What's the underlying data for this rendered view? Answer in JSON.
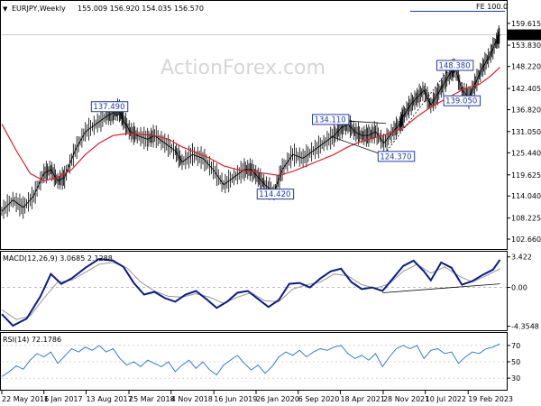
{
  "header": {
    "symbol": "EURJPY,Weekly",
    "ohlc": "155.009 156.920 154.035 156.570",
    "fe_label": "FE 100.0",
    "watermark": "ActionForex.com"
  },
  "colors": {
    "price": "#000000",
    "ma": "#e0202a",
    "macd": "#0b1a8c",
    "signal": "#9a9a9a",
    "rsi": "#1e6fd9",
    "annotation": "#1f3aa6"
  },
  "chart_data": [
    {
      "type": "line",
      "panel": "price",
      "y_ticks": [
        "159.615",
        "153.830",
        "148.220",
        "142.405",
        "136.820",
        "131.050",
        "125.440",
        "119.625",
        "114.040",
        "108.225",
        "102.660"
      ],
      "current_price": "156.570",
      "ylim": [
        101,
        161
      ],
      "price_series": [
        [
          2016.39,
          110
        ],
        [
          2016.55,
          113
        ],
        [
          2016.7,
          111
        ],
        [
          2016.85,
          114
        ],
        [
          2017.0,
          120
        ],
        [
          2017.1,
          121
        ],
        [
          2017.2,
          118
        ],
        [
          2017.3,
          119
        ],
        [
          2017.45,
          126
        ],
        [
          2017.6,
          131
        ],
        [
          2017.75,
          133
        ],
        [
          2017.9,
          135
        ],
        [
          2018.0,
          136
        ],
        [
          2018.08,
          137
        ],
        [
          2018.15,
          134
        ],
        [
          2018.25,
          131
        ],
        [
          2018.35,
          130
        ],
        [
          2018.5,
          129
        ],
        [
          2018.6,
          130
        ],
        [
          2018.75,
          128
        ],
        [
          2018.9,
          126
        ],
        [
          2019.0,
          123
        ],
        [
          2019.15,
          125
        ],
        [
          2019.3,
          124
        ],
        [
          2019.45,
          121
        ],
        [
          2019.6,
          117
        ],
        [
          2019.75,
          119
        ],
        [
          2019.9,
          121
        ],
        [
          2020.0,
          121
        ],
        [
          2020.1,
          119
        ],
        [
          2020.2,
          117
        ],
        [
          2020.33,
          115
        ],
        [
          2020.45,
          121
        ],
        [
          2020.6,
          125
        ],
        [
          2020.75,
          124
        ],
        [
          2020.9,
          126
        ],
        [
          2021.05,
          128
        ],
        [
          2021.2,
          130
        ],
        [
          2021.3,
          132
        ],
        [
          2021.4,
          133
        ],
        [
          2021.5,
          131
        ],
        [
          2021.6,
          130
        ],
        [
          2021.7,
          130
        ],
        [
          2021.8,
          131
        ],
        [
          2021.92,
          128
        ],
        [
          2022.05,
          131
        ],
        [
          2022.15,
          133
        ],
        [
          2022.2,
          135
        ],
        [
          2022.3,
          138
        ],
        [
          2022.4,
          140
        ],
        [
          2022.5,
          142
        ],
        [
          2022.6,
          138
        ],
        [
          2022.7,
          141
        ],
        [
          2022.8,
          144
        ],
        [
          2022.9,
          147
        ],
        [
          2022.95,
          148
        ],
        [
          2023.05,
          142
        ],
        [
          2023.15,
          140
        ],
        [
          2023.25,
          144
        ],
        [
          2023.35,
          148
        ],
        [
          2023.45,
          151
        ],
        [
          2023.55,
          155
        ],
        [
          2023.6,
          156.6
        ]
      ],
      "ma_series": [
        [
          2016.39,
          133
        ],
        [
          2016.6,
          126
        ],
        [
          2016.8,
          120
        ],
        [
          2017.0,
          118
        ],
        [
          2017.2,
          119
        ],
        [
          2017.4,
          121
        ],
        [
          2017.6,
          125
        ],
        [
          2017.8,
          128
        ],
        [
          2018.0,
          130
        ],
        [
          2018.2,
          130.5
        ],
        [
          2018.4,
          130.3
        ],
        [
          2018.6,
          130
        ],
        [
          2018.8,
          129
        ],
        [
          2019.0,
          127
        ],
        [
          2019.2,
          125.5
        ],
        [
          2019.4,
          124
        ],
        [
          2019.6,
          122
        ],
        [
          2019.8,
          121
        ],
        [
          2020.0,
          120.5
        ],
        [
          2020.2,
          120
        ],
        [
          2020.4,
          119.5
        ],
        [
          2020.6,
          120.5
        ],
        [
          2020.8,
          122
        ],
        [
          2021.0,
          123.5
        ],
        [
          2021.2,
          125
        ],
        [
          2021.4,
          127
        ],
        [
          2021.6,
          128.5
        ],
        [
          2021.8,
          129.5
        ],
        [
          2022.0,
          130.5
        ],
        [
          2022.2,
          132
        ],
        [
          2022.4,
          135
        ],
        [
          2022.6,
          137.5
        ],
        [
          2022.8,
          139.5
        ],
        [
          2022.95,
          141
        ],
        [
          2023.1,
          142.5
        ],
        [
          2023.3,
          143.5
        ],
        [
          2023.45,
          145.5
        ],
        [
          2023.6,
          148
        ]
      ],
      "annotations": [
        {
          "label": "137.490",
          "x": 2017.95,
          "y": 137.49
        },
        {
          "label": "114.420",
          "x": 2020.35,
          "y": 114.42
        },
        {
          "label": "134.110",
          "x": 2021.15,
          "y": 134.11
        },
        {
          "label": "124.370",
          "x": 2022.1,
          "y": 124.37
        },
        {
          "label": "148.380",
          "x": 2022.95,
          "y": 148.38
        },
        {
          "label": "139.050",
          "x": 2023.05,
          "y": 139.05
        }
      ]
    },
    {
      "type": "line",
      "panel": "macd",
      "title": "MACD(12,26,9) 3.0685 2.1288",
      "y_ticks": [
        "3.422",
        "0.00",
        "-4.3548"
      ],
      "ylim": [
        -4.6,
        3.7
      ],
      "macd_series": [
        [
          2016.39,
          -3.0
        ],
        [
          2016.55,
          -4.3
        ],
        [
          2016.75,
          -3.5
        ],
        [
          2016.95,
          -1.0
        ],
        [
          2017.1,
          1.5
        ],
        [
          2017.25,
          0.4
        ],
        [
          2017.4,
          1.0
        ],
        [
          2017.6,
          2.2
        ],
        [
          2017.8,
          3.2
        ],
        [
          2018.0,
          3.0
        ],
        [
          2018.15,
          2.3
        ],
        [
          2018.3,
          0.5
        ],
        [
          2018.45,
          -0.8
        ],
        [
          2018.6,
          -0.5
        ],
        [
          2018.75,
          -1.2
        ],
        [
          2018.9,
          -1.6
        ],
        [
          2019.05,
          -0.8
        ],
        [
          2019.2,
          -0.4
        ],
        [
          2019.35,
          -1.3
        ],
        [
          2019.5,
          -2.3
        ],
        [
          2019.65,
          -1.6
        ],
        [
          2019.8,
          -0.6
        ],
        [
          2019.95,
          -0.4
        ],
        [
          2020.1,
          -1.3
        ],
        [
          2020.25,
          -2.2
        ],
        [
          2020.4,
          -1.4
        ],
        [
          2020.55,
          0.4
        ],
        [
          2020.7,
          0.5
        ],
        [
          2020.85,
          0.0
        ],
        [
          2021.0,
          1.0
        ],
        [
          2021.15,
          1.8
        ],
        [
          2021.3,
          2.1
        ],
        [
          2021.45,
          0.6
        ],
        [
          2021.6,
          -0.2
        ],
        [
          2021.75,
          0.0
        ],
        [
          2021.9,
          -0.4
        ],
        [
          2022.05,
          1.0
        ],
        [
          2022.2,
          2.4
        ],
        [
          2022.35,
          3.0
        ],
        [
          2022.5,
          1.8
        ],
        [
          2022.6,
          0.8
        ],
        [
          2022.75,
          2.8
        ],
        [
          2022.9,
          2.2
        ],
        [
          2023.05,
          0.3
        ],
        [
          2023.2,
          0.7
        ],
        [
          2023.35,
          1.4
        ],
        [
          2023.5,
          2.0
        ],
        [
          2023.6,
          3.1
        ]
      ],
      "signal_series": [
        [
          2016.39,
          -2.5
        ],
        [
          2016.6,
          -3.6
        ],
        [
          2016.8,
          -3.2
        ],
        [
          2017.0,
          -1.2
        ],
        [
          2017.2,
          0.6
        ],
        [
          2017.4,
          0.8
        ],
        [
          2017.6,
          1.7
        ],
        [
          2017.8,
          2.6
        ],
        [
          2018.0,
          2.8
        ],
        [
          2018.2,
          2.2
        ],
        [
          2018.4,
          0.6
        ],
        [
          2018.6,
          -0.4
        ],
        [
          2018.8,
          -1.0
        ],
        [
          2019.0,
          -1.1
        ],
        [
          2019.2,
          -0.7
        ],
        [
          2019.4,
          -1.1
        ],
        [
          2019.6,
          -1.8
        ],
        [
          2019.8,
          -1.1
        ],
        [
          2020.0,
          -0.6
        ],
        [
          2020.2,
          -1.5
        ],
        [
          2020.4,
          -1.6
        ],
        [
          2020.6,
          -0.2
        ],
        [
          2020.8,
          0.3
        ],
        [
          2021.0,
          0.6
        ],
        [
          2021.2,
          1.5
        ],
        [
          2021.4,
          1.3
        ],
        [
          2021.6,
          0.3
        ],
        [
          2021.8,
          -0.1
        ],
        [
          2022.0,
          0.4
        ],
        [
          2022.2,
          1.8
        ],
        [
          2022.4,
          2.6
        ],
        [
          2022.6,
          1.6
        ],
        [
          2022.8,
          2.3
        ],
        [
          2023.0,
          1.3
        ],
        [
          2023.2,
          0.6
        ],
        [
          2023.4,
          1.3
        ],
        [
          2023.6,
          2.1
        ]
      ],
      "trendline": [
        [
          2021.9,
          -0.6
        ],
        [
          2023.6,
          0.4
        ]
      ]
    },
    {
      "type": "line",
      "panel": "rsi",
      "title": "RSI(14) 72.1786",
      "y_ticks": [
        "70",
        "50",
        "30"
      ],
      "ylim": [
        18,
        82
      ],
      "rsi_series": [
        [
          2016.39,
          32
        ],
        [
          2016.5,
          38
        ],
        [
          2016.6,
          45
        ],
        [
          2016.7,
          41
        ],
        [
          2016.8,
          52
        ],
        [
          2016.9,
          60
        ],
        [
          2017.0,
          56
        ],
        [
          2017.1,
          62
        ],
        [
          2017.2,
          48
        ],
        [
          2017.3,
          57
        ],
        [
          2017.4,
          66
        ],
        [
          2017.5,
          62
        ],
        [
          2017.6,
          68
        ],
        [
          2017.7,
          64
        ],
        [
          2017.8,
          70
        ],
        [
          2017.9,
          62
        ],
        [
          2018.0,
          66
        ],
        [
          2018.1,
          54
        ],
        [
          2018.2,
          46
        ],
        [
          2018.3,
          50
        ],
        [
          2018.4,
          44
        ],
        [
          2018.5,
          52
        ],
        [
          2018.6,
          48
        ],
        [
          2018.7,
          44
        ],
        [
          2018.8,
          50
        ],
        [
          2018.9,
          38
        ],
        [
          2019.0,
          46
        ],
        [
          2019.1,
          52
        ],
        [
          2019.2,
          42
        ],
        [
          2019.3,
          50
        ],
        [
          2019.4,
          40
        ],
        [
          2019.5,
          34
        ],
        [
          2019.6,
          46
        ],
        [
          2019.7,
          52
        ],
        [
          2019.8,
          58
        ],
        [
          2019.9,
          48
        ],
        [
          2020.0,
          40
        ],
        [
          2020.1,
          46
        ],
        [
          2020.2,
          36
        ],
        [
          2020.3,
          44
        ],
        [
          2020.4,
          56
        ],
        [
          2020.5,
          62
        ],
        [
          2020.6,
          58
        ],
        [
          2020.7,
          64
        ],
        [
          2020.8,
          56
        ],
        [
          2020.9,
          62
        ],
        [
          2021.0,
          66
        ],
        [
          2021.1,
          64
        ],
        [
          2021.2,
          68
        ],
        [
          2021.3,
          70
        ],
        [
          2021.4,
          60
        ],
        [
          2021.5,
          54
        ],
        [
          2021.6,
          58
        ],
        [
          2021.7,
          52
        ],
        [
          2021.8,
          60
        ],
        [
          2021.9,
          44
        ],
        [
          2022.0,
          56
        ],
        [
          2022.1,
          66
        ],
        [
          2022.2,
          70
        ],
        [
          2022.3,
          66
        ],
        [
          2022.4,
          70
        ],
        [
          2022.5,
          54
        ],
        [
          2022.6,
          64
        ],
        [
          2022.7,
          66
        ],
        [
          2022.8,
          60
        ],
        [
          2022.9,
          62
        ],
        [
          2023.0,
          48
        ],
        [
          2023.1,
          56
        ],
        [
          2023.2,
          62
        ],
        [
          2023.3,
          60
        ],
        [
          2023.4,
          66
        ],
        [
          2023.5,
          68
        ],
        [
          2023.6,
          72
        ]
      ]
    }
  ],
  "x_axis": {
    "labels": [
      {
        "text": "22 May 2016",
        "x": 2016.39
      },
      {
        "text": "1 Jan 2017",
        "x": 2017.0
      },
      {
        "text": "13 Aug 2017",
        "x": 2017.61
      },
      {
        "text": "25 Mar 2018",
        "x": 2018.23
      },
      {
        "text": "4 Nov 2018",
        "x": 2018.84
      },
      {
        "text": "16 Jun 2019",
        "x": 2019.46
      },
      {
        "text": "26 Jan 2020",
        "x": 2020.07
      },
      {
        "text": "6 Sep 2020",
        "x": 2020.68
      },
      {
        "text": "18 Apr 2021",
        "x": 2021.29
      },
      {
        "text": "28 Nov 2021",
        "x": 2021.91
      },
      {
        "text": "10 Jul 2022",
        "x": 2022.52
      },
      {
        "text": "19 Feb 2023",
        "x": 2023.14
      }
    ]
  }
}
